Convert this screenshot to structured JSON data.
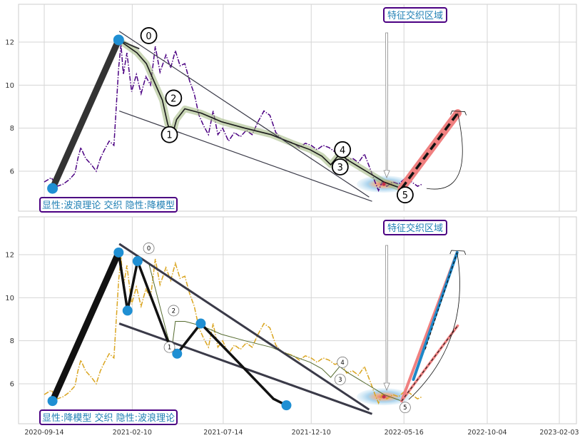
{
  "chart_data": [
    {
      "type": "line",
      "panel": "top",
      "x_tick_labels": [],
      "y_ticks": [
        6,
        8,
        10,
        12
      ],
      "ylim": [
        4.1,
        13.5
      ],
      "xlim_days": [
        -30,
        900
      ],
      "grid": true,
      "price_series": {
        "color": "#4B0082",
        "style": "dash-dot",
        "points": [
          [
            0,
            5.5
          ],
          [
            12,
            5.7
          ],
          [
            22,
            5.3
          ],
          [
            32,
            5.4
          ],
          [
            42,
            5.6
          ],
          [
            52,
            5.9
          ],
          [
            57,
            6.6
          ],
          [
            62,
            7.1
          ],
          [
            70,
            6.6
          ],
          [
            80,
            6.3
          ],
          [
            88,
            6.0
          ],
          [
            95,
            6.6
          ],
          [
            102,
            7.0
          ],
          [
            110,
            7.4
          ],
          [
            118,
            7.2
          ],
          [
            126,
            10.8
          ],
          [
            130,
            11.9
          ],
          [
            134,
            10.5
          ],
          [
            140,
            11.5
          ],
          [
            148,
            9.7
          ],
          [
            156,
            10.5
          ],
          [
            164,
            9.6
          ],
          [
            172,
            10.4
          ],
          [
            180,
            10.0
          ],
          [
            188,
            11.8
          ],
          [
            196,
            10.6
          ],
          [
            206,
            11.4
          ],
          [
            214,
            10.8
          ],
          [
            222,
            11.6
          ],
          [
            230,
            10.9
          ],
          [
            238,
            11.0
          ],
          [
            246,
            10.2
          ],
          [
            254,
            9.6
          ],
          [
            262,
            8.6
          ],
          [
            270,
            8.1
          ],
          [
            278,
            7.7
          ],
          [
            286,
            8.8
          ],
          [
            294,
            7.7
          ],
          [
            302,
            8.0
          ],
          [
            312,
            7.4
          ],
          [
            322,
            7.8
          ],
          [
            332,
            7.6
          ],
          [
            342,
            7.9
          ],
          [
            352,
            7.7
          ],
          [
            362,
            8.3
          ],
          [
            372,
            8.8
          ],
          [
            382,
            8.6
          ],
          [
            392,
            7.8
          ],
          [
            402,
            7.5
          ],
          [
            412,
            7.4
          ],
          [
            422,
            7.3
          ],
          [
            432,
            7.1
          ],
          [
            442,
            7.3
          ],
          [
            452,
            7.2
          ],
          [
            462,
            7.0
          ],
          [
            472,
            7.2
          ],
          [
            482,
            7.1
          ],
          [
            492,
            6.9
          ],
          [
            502,
            7.0
          ],
          [
            512,
            6.5
          ],
          [
            522,
            6.6
          ],
          [
            532,
            6.4
          ],
          [
            542,
            6.8
          ],
          [
            552,
            6.1
          ],
          [
            560,
            5.5
          ],
          [
            566,
            5.1
          ],
          [
            572,
            5.5
          ],
          [
            580,
            5.3
          ],
          [
            590,
            5.5
          ],
          [
            600,
            5.4
          ],
          [
            612,
            5.7
          ],
          [
            622,
            5.5
          ],
          [
            632,
            5.3
          ],
          [
            640,
            5.4
          ]
        ]
      },
      "wave_path": [
        [
          126,
          12.1
        ],
        [
          157,
          11.5
        ],
        [
          173,
          11.0
        ],
        [
          184,
          10.3
        ],
        [
          200,
          9.3
        ],
        [
          209,
          8.2
        ],
        [
          216,
          7.6
        ],
        [
          224,
          8.4
        ],
        [
          238,
          8.9
        ],
        [
          266,
          8.7
        ],
        [
          300,
          8.3
        ],
        [
          340,
          8.0
        ],
        [
          384,
          7.7
        ],
        [
          420,
          7.3
        ],
        [
          450,
          7.0
        ],
        [
          470,
          6.7
        ],
        [
          485,
          6.3
        ],
        [
          500,
          6.8
        ],
        [
          515,
          6.5
        ],
        [
          545,
          6.0
        ],
        [
          575,
          5.5
        ],
        [
          605,
          5.2
        ]
      ],
      "leg_lines": [
        {
          "from": [
            14,
            5.2
          ],
          "to": [
            126,
            12.1
          ],
          "color": "#333333",
          "width": 9
        },
        {
          "from": [
            126,
            12.1
          ],
          "to": [
            160,
            11.7
          ],
          "color": "#333333",
          "width": 2
        },
        {
          "from": [
            605,
            5.2
          ],
          "to": [
            700,
            8.7
          ],
          "color": "#F08080",
          "width": 11
        },
        {
          "from": [
            605,
            5.2
          ],
          "to": [
            700,
            8.7
          ],
          "color": "#111111",
          "width": 3.5,
          "dashed": true
        }
      ],
      "channel_lines": [
        {
          "from": [
            127,
            12.5
          ],
          "to": [
            550,
            4.8
          ]
        },
        {
          "from": [
            127,
            8.8
          ],
          "to": [
            555,
            4.6
          ]
        }
      ],
      "pivots": [
        {
          "label": "0",
          "x": 177,
          "y": 12.3
        },
        {
          "label": "1",
          "x": 212,
          "y": 7.7
        },
        {
          "label": "2",
          "x": 219,
          "y": 9.4
        },
        {
          "label": "3",
          "x": 501,
          "y": 6.2
        },
        {
          "label": "4",
          "x": 505,
          "y": 7.0
        },
        {
          "label": "5",
          "x": 611,
          "y": 4.9
        }
      ],
      "dots": [
        {
          "x": 14,
          "y": 5.2
        },
        {
          "x": 126,
          "y": 12.1
        }
      ],
      "feature_region_center": [
        575,
        5.4
      ],
      "annotation_top": "特征交织区域",
      "annotation_bottom": "显性:波浪理论 交织 隐性:降模型",
      "arrow_target": [
        575,
        5.7
      ]
    },
    {
      "type": "line",
      "panel": "bottom",
      "x_tick_labels": [
        "2020-09-14",
        "2021-02-10",
        "2021-07-14",
        "2021-12-10",
        "2022-05-16",
        "2022-10-04",
        "2023-02-03"
      ],
      "x_tick_days": [
        0,
        149,
        303,
        452,
        609,
        750,
        872
      ],
      "y_ticks": [
        6,
        8,
        10,
        12
      ],
      "ylim": [
        4.1,
        13.5
      ],
      "xlim_days": [
        -30,
        900
      ],
      "grid": true,
      "price_series": {
        "color": "#DAA520",
        "style": "dash-dot",
        "points": [
          [
            0,
            5.5
          ],
          [
            12,
            5.7
          ],
          [
            22,
            5.3
          ],
          [
            32,
            5.4
          ],
          [
            42,
            5.6
          ],
          [
            52,
            5.9
          ],
          [
            57,
            6.6
          ],
          [
            62,
            7.1
          ],
          [
            70,
            6.6
          ],
          [
            80,
            6.3
          ],
          [
            88,
            6.0
          ],
          [
            95,
            6.6
          ],
          [
            102,
            7.0
          ],
          [
            110,
            7.4
          ],
          [
            118,
            7.2
          ],
          [
            126,
            10.8
          ],
          [
            130,
            11.9
          ],
          [
            134,
            10.5
          ],
          [
            140,
            11.5
          ],
          [
            148,
            9.7
          ],
          [
            156,
            10.5
          ],
          [
            164,
            9.6
          ],
          [
            172,
            10.4
          ],
          [
            180,
            10.0
          ],
          [
            188,
            11.8
          ],
          [
            196,
            10.6
          ],
          [
            206,
            11.4
          ],
          [
            214,
            10.8
          ],
          [
            222,
            11.6
          ],
          [
            230,
            10.9
          ],
          [
            238,
            11.0
          ],
          [
            246,
            10.2
          ],
          [
            254,
            9.6
          ],
          [
            262,
            8.6
          ],
          [
            270,
            8.1
          ],
          [
            278,
            7.7
          ],
          [
            286,
            8.8
          ],
          [
            294,
            7.7
          ],
          [
            302,
            8.0
          ],
          [
            312,
            7.4
          ],
          [
            322,
            7.8
          ],
          [
            332,
            7.6
          ],
          [
            342,
            7.9
          ],
          [
            352,
            7.7
          ],
          [
            362,
            8.3
          ],
          [
            372,
            8.8
          ],
          [
            382,
            8.6
          ],
          [
            392,
            7.8
          ],
          [
            402,
            7.5
          ],
          [
            412,
            7.4
          ],
          [
            422,
            7.3
          ],
          [
            432,
            7.1
          ],
          [
            442,
            7.3
          ],
          [
            452,
            7.2
          ],
          [
            462,
            7.0
          ],
          [
            472,
            7.2
          ],
          [
            482,
            7.1
          ],
          [
            492,
            6.9
          ],
          [
            502,
            7.0
          ],
          [
            512,
            6.5
          ],
          [
            522,
            6.6
          ],
          [
            532,
            6.4
          ],
          [
            542,
            6.8
          ],
          [
            552,
            6.1
          ],
          [
            560,
            5.5
          ],
          [
            566,
            5.1
          ],
          [
            572,
            5.5
          ],
          [
            580,
            5.3
          ],
          [
            590,
            5.5
          ],
          [
            600,
            5.4
          ],
          [
            612,
            5.7
          ],
          [
            622,
            5.5
          ],
          [
            632,
            5.3
          ],
          [
            640,
            5.4
          ]
        ]
      },
      "wave_path": [
        [
          177,
          11.6
        ],
        [
          209,
          8.2
        ],
        [
          216,
          7.6
        ],
        [
          222,
          8.9
        ],
        [
          238,
          8.9
        ],
        [
          266,
          8.7
        ],
        [
          300,
          8.3
        ],
        [
          340,
          8.0
        ],
        [
          384,
          7.7
        ],
        [
          420,
          7.3
        ],
        [
          450,
          7.0
        ],
        [
          470,
          6.7
        ],
        [
          485,
          6.3
        ],
        [
          500,
          6.8
        ],
        [
          515,
          6.5
        ],
        [
          545,
          6.0
        ],
        [
          575,
          5.5
        ],
        [
          605,
          5.2
        ]
      ],
      "model_path": [
        [
          126,
          12.1
        ],
        [
          141,
          9.4
        ],
        [
          158,
          11.7
        ],
        [
          209,
          8.0
        ],
        [
          225,
          7.4
        ],
        [
          265,
          8.8
        ],
        [
          325,
          7.1
        ],
        [
          388,
          5.3
        ],
        [
          410,
          5.0
        ]
      ],
      "leg_lines": [
        {
          "from": [
            14,
            5.2
          ],
          "to": [
            126,
            12.1
          ],
          "color": "#111111",
          "width": 9
        },
        {
          "from": [
            605,
            5.2
          ],
          "to": [
            699,
            12.1
          ],
          "color": "#F08080",
          "width": 4
        },
        {
          "from": [
            625,
            6.2
          ],
          "to": [
            699,
            12.1
          ],
          "color": "#1E88C8",
          "width": 4
        },
        {
          "from": [
            645,
            7.6
          ],
          "to": [
            699,
            12.1
          ],
          "color": "#111111",
          "width": 1.2,
          "dashed": true
        },
        {
          "from": [
            605,
            5.2
          ],
          "to": [
            700,
            8.7
          ],
          "color": "#F08080",
          "width": 3.5
        },
        {
          "from": [
            605,
            5.2
          ],
          "to": [
            700,
            8.7
          ],
          "color": "#222222",
          "width": 1.2,
          "dashed": true
        }
      ],
      "channel_lines": [
        {
          "from": [
            127,
            12.5
          ],
          "to": [
            550,
            4.8
          ]
        },
        {
          "from": [
            127,
            8.8
          ],
          "to": [
            555,
            4.6
          ]
        }
      ],
      "pivots": [
        {
          "label": "0",
          "x": 177,
          "y": 12.3
        },
        {
          "label": "1",
          "x": 212,
          "y": 7.7
        },
        {
          "label": "2",
          "x": 219,
          "y": 9.4
        },
        {
          "label": "3",
          "x": 501,
          "y": 6.2
        },
        {
          "label": "4",
          "x": 505,
          "y": 7.0
        },
        {
          "label": "5",
          "x": 611,
          "y": 4.9
        }
      ],
      "dots": [
        {
          "x": 14,
          "y": 5.2
        },
        {
          "x": 126,
          "y": 12.1
        },
        {
          "x": 141,
          "y": 9.4
        },
        {
          "x": 158,
          "y": 11.7
        },
        {
          "x": 225,
          "y": 7.4
        },
        {
          "x": 265,
          "y": 8.8
        },
        {
          "x": 410,
          "y": 5.0
        }
      ],
      "feature_region_center": [
        575,
        5.4
      ],
      "annotation_top": "特征交织区域",
      "annotation_bottom": "显性:降模型 交织 隐性:波浪理论",
      "arrow_target": [
        575,
        5.7
      ]
    }
  ]
}
